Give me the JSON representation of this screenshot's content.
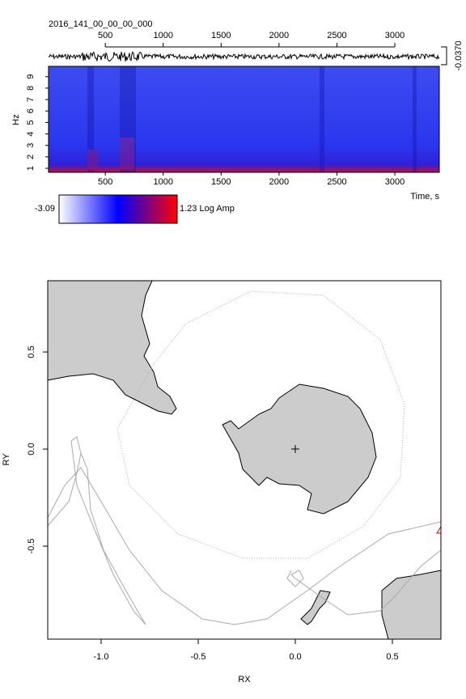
{
  "chart_data": [
    {
      "type": "spectrogram",
      "title": "2016_141_00_00_00_000",
      "xlabel": "Time, s",
      "ylabel": "Hz",
      "xlim": [
        10,
        3384
      ],
      "xticks": [
        500,
        1000,
        1500,
        2000,
        2500,
        3000
      ],
      "ylim": [
        0.65,
        9.9
      ],
      "yticks": [
        1,
        2,
        3,
        4,
        5,
        6,
        7,
        8,
        9
      ],
      "trace_scale_label": "-0.0370",
      "colorbar": {
        "min": -3.09,
        "max_label": "1.23 Log Amp",
        "colors": [
          "#ffffff",
          "#0000ff",
          "#ff0000"
        ]
      }
    },
    {
      "type": "map",
      "xlabel": "RX",
      "ylabel": "RY",
      "xlim": [
        -1.275,
        0.75
      ],
      "xticks": [
        {
          "value": -1,
          "label": "-1.0"
        },
        -0.5,
        {
          "value": 0,
          "label": "0.0"
        },
        0.5
      ],
      "ylim": [
        -0.979,
        0.867
      ],
      "yticks": [
        -0.5,
        {
          "value": 0,
          "label": "0.0"
        },
        0.5
      ],
      "land_color": "#cccccc"
    }
  ]
}
